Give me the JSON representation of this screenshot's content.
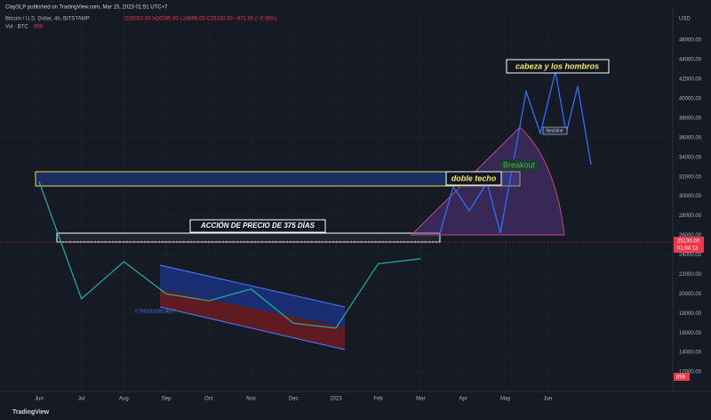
{
  "chart_data": {
    "type": "line",
    "publisher": "ClaySLP published on TradingView.com, Mar 15, 2023 01:51 UTC+7",
    "title": "Bitcoin / U.S. Dollar, 4h, BITSTAMP",
    "ohlc": "O26002.00 H26095.00 L24896.00 C25130.00 −872.00 (−3.35%)",
    "volume_label": "Vol · BTC",
    "volume_value": "899",
    "currency": "USD",
    "last_price": "25130.00",
    "countdown": "01:04:13",
    "brand": "TradingView",
    "annotations": [
      "cabeza y los hombros",
      "doble techo",
      "ACCIÓN DE PRECIO DE 375 DÍAS",
      "Breakout",
      "Neckline",
      "0.782320328114837"
    ],
    "categories": [
      "Jun",
      "Jul",
      "Aug",
      "Sep",
      "Oct",
      "Nov",
      "Dec",
      "2023",
      "Feb",
      "Mar",
      "Apr",
      "May",
      "Jun"
    ],
    "series": [
      {
        "name": "BTCUSD",
        "color": "#26a69a",
        "values": [
          31500,
          19500,
          23300,
          20000,
          19300,
          20500,
          17000,
          16500,
          23100,
          23600,
          null,
          null,
          null
        ]
      }
    ],
    "ylim": [
      10000,
      49200
    ],
    "yticks": [
      {
        "value": 12000,
        "label": "12000.00"
      },
      {
        "value": 14000,
        "label": "14000.00"
      },
      {
        "value": 16000,
        "label": "16000.00"
      },
      {
        "value": 18000,
        "label": "18000.00"
      },
      {
        "value": 20000,
        "label": "20000.00"
      },
      {
        "value": 22000,
        "label": "22000.00"
      },
      {
        "value": 24000,
        "label": "24000.00"
      },
      {
        "value": 26000,
        "label": "26000.00"
      },
      {
        "value": 28000,
        "label": "28000.00"
      },
      {
        "value": 30000,
        "label": "30000.00"
      },
      {
        "value": 32000,
        "label": "32000.00"
      },
      {
        "value": 34000,
        "label": "34000.00"
      },
      {
        "value": 36000,
        "label": "36000.00"
      },
      {
        "value": 38000,
        "label": "38000.00"
      },
      {
        "value": 40000,
        "label": "40000.00"
      },
      {
        "value": 42000,
        "label": "42000.00"
      },
      {
        "value": 44000,
        "label": "44000.00"
      },
      {
        "value": 46000,
        "label": "46000.00"
      }
    ],
    "grid": true
  }
}
